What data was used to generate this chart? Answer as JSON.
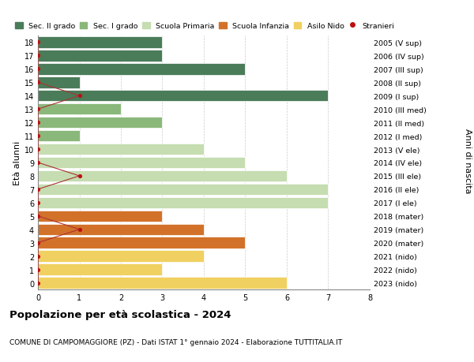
{
  "ages": [
    18,
    17,
    16,
    15,
    14,
    13,
    12,
    11,
    10,
    9,
    8,
    7,
    6,
    5,
    4,
    3,
    2,
    1,
    0
  ],
  "years": [
    "2005 (V sup)",
    "2006 (IV sup)",
    "2007 (III sup)",
    "2008 (II sup)",
    "2009 (I sup)",
    "2010 (III med)",
    "2011 (II med)",
    "2012 (I med)",
    "2013 (V ele)",
    "2014 (IV ele)",
    "2015 (III ele)",
    "2016 (II ele)",
    "2017 (I ele)",
    "2018 (mater)",
    "2019 (mater)",
    "2020 (mater)",
    "2021 (nido)",
    "2022 (nido)",
    "2023 (nido)"
  ],
  "values": [
    3,
    3,
    5,
    1,
    7,
    2,
    3,
    1,
    4,
    5,
    6,
    7,
    7,
    3,
    4,
    5,
    4,
    3,
    6
  ],
  "bar_colors": [
    "#4a7c59",
    "#4a7c59",
    "#4a7c59",
    "#4a7c59",
    "#4a7c59",
    "#8ab87a",
    "#8ab87a",
    "#8ab87a",
    "#c5ddb0",
    "#c5ddb0",
    "#c5ddb0",
    "#c5ddb0",
    "#c5ddb0",
    "#d2722a",
    "#d2722a",
    "#d2722a",
    "#f0d060",
    "#f0d060",
    "#f0d060"
  ],
  "stranieri_x": [
    0,
    0,
    0,
    0,
    1,
    0,
    0,
    0,
    0,
    0,
    1,
    0,
    0,
    0,
    1,
    0,
    0,
    0,
    0
  ],
  "stranieri_y": [
    18,
    17,
    16,
    15,
    14,
    13,
    12,
    11,
    10,
    9,
    8,
    7,
    6,
    5,
    4,
    3,
    2,
    1,
    0
  ],
  "legend_labels": [
    "Sec. II grado",
    "Sec. I grado",
    "Scuola Primaria",
    "Scuola Infanzia",
    "Asilo Nido",
    "Stranieri"
  ],
  "legend_colors": [
    "#4a7c59",
    "#8ab87a",
    "#c5ddb0",
    "#d2722a",
    "#f0d060",
    "#bb1111"
  ],
  "title": "Popolazione per età scolastica - 2024",
  "subtitle": "COMUNE DI CAMPOMAGGIORE (PZ) - Dati ISTAT 1° gennaio 2024 - Elaborazione TUTTITALIA.IT",
  "ylabel": "Età alunni",
  "right_label": "Anni di nascita",
  "xlim": [
    0,
    8
  ],
  "ylim": [
    -0.5,
    18.5
  ],
  "background_color": "#ffffff",
  "grid_color": "#cccccc",
  "bar_height": 0.85,
  "stranieri_color": "#bb1111",
  "stranieri_line_color": "#aa3333"
}
